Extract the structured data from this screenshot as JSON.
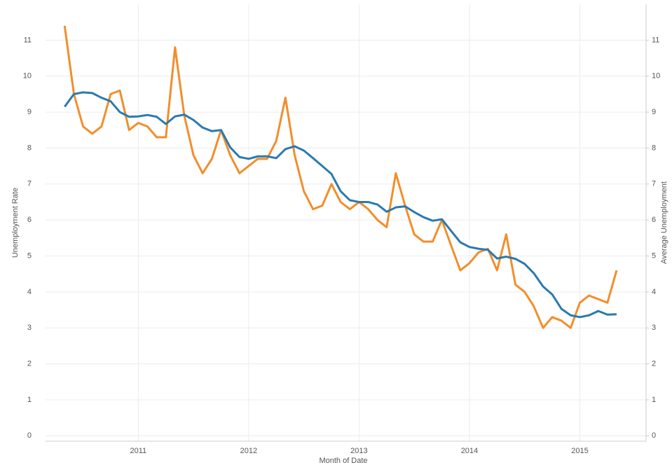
{
  "chart_data": {
    "type": "line",
    "x": [
      2010.333,
      2010.417,
      2010.5,
      2010.583,
      2010.667,
      2010.75,
      2010.833,
      2010.917,
      2011,
      2011.083,
      2011.167,
      2011.25,
      2011.333,
      2011.417,
      2011.5,
      2011.583,
      2011.667,
      2011.75,
      2011.833,
      2011.917,
      2012,
      2012.083,
      2012.167,
      2012.25,
      2012.333,
      2012.417,
      2012.5,
      2012.583,
      2012.667,
      2012.75,
      2012.833,
      2012.917,
      2013,
      2013.083,
      2013.167,
      2013.25,
      2013.333,
      2013.417,
      2013.5,
      2013.583,
      2013.667,
      2013.75,
      2013.833,
      2013.917,
      2014,
      2014.083,
      2014.167,
      2014.25,
      2014.333,
      2014.417,
      2014.5,
      2014.583,
      2014.667,
      2014.75,
      2014.833,
      2014.917,
      2015,
      2015.083,
      2015.167,
      2015.25,
      2015.333
    ],
    "series": [
      {
        "name": "Unemployment Rate",
        "color": "#f28e2b",
        "values": [
          11.4,
          9.5,
          8.6,
          8.4,
          8.6,
          9.5,
          9.6,
          8.5,
          8.7,
          8.6,
          8.3,
          8.3,
          10.8,
          8.9,
          7.8,
          7.3,
          7.7,
          8.5,
          7.8,
          7.3,
          7.5,
          7.7,
          7.7,
          8.2,
          9.4,
          7.8,
          6.8,
          6.3,
          6.4,
          7.0,
          6.5,
          6.3,
          6.5,
          6.3,
          6.0,
          5.8,
          7.3,
          6.4,
          5.6,
          5.4,
          5.4,
          6.0,
          5.3,
          4.6,
          4.8,
          5.1,
          5.2,
          4.6,
          5.6,
          4.2,
          4.0,
          3.6,
          3.0,
          3.3,
          3.2,
          3.0,
          3.7,
          3.9,
          3.8,
          3.7,
          4.6
        ]
      },
      {
        "name": "Average Unemployment",
        "color": "#2a7ab0",
        "axis": "y2",
        "values": [
          9.15,
          9.5,
          9.55,
          9.53,
          9.4,
          9.3,
          9.0,
          8.87,
          8.88,
          8.92,
          8.87,
          8.67,
          8.88,
          8.93,
          8.78,
          8.57,
          8.47,
          8.5,
          8.02,
          7.75,
          7.7,
          7.77,
          7.77,
          7.72,
          7.97,
          8.05,
          7.93,
          7.72,
          7.5,
          7.28,
          6.8,
          6.55,
          6.5,
          6.5,
          6.43,
          6.23,
          6.35,
          6.38,
          6.22,
          6.08,
          5.98,
          6.02,
          5.7,
          5.38,
          5.25,
          5.2,
          5.17,
          4.93,
          4.98,
          4.92,
          4.78,
          4.52,
          4.15,
          3.93,
          3.53,
          3.35,
          3.3,
          3.35,
          3.47,
          3.37,
          3.38
        ]
      }
    ],
    "xlabel": "Month of Date",
    "ylabel": "Unemployment Rate",
    "y2label": "Average Unemployment",
    "xlim": [
      2010.16,
      2015.6
    ],
    "xticks": [
      2011,
      2012,
      2013,
      2014,
      2015
    ],
    "ylim": [
      -0.15,
      12
    ],
    "yticks": [
      0,
      1,
      2,
      3,
      4,
      5,
      6,
      7,
      8,
      9,
      10,
      11
    ],
    "y2lim": [
      -0.15,
      12
    ],
    "y2ticks": [
      0,
      1,
      2,
      3,
      4,
      5,
      6,
      7,
      8,
      9,
      10,
      11
    ],
    "grid": true
  }
}
